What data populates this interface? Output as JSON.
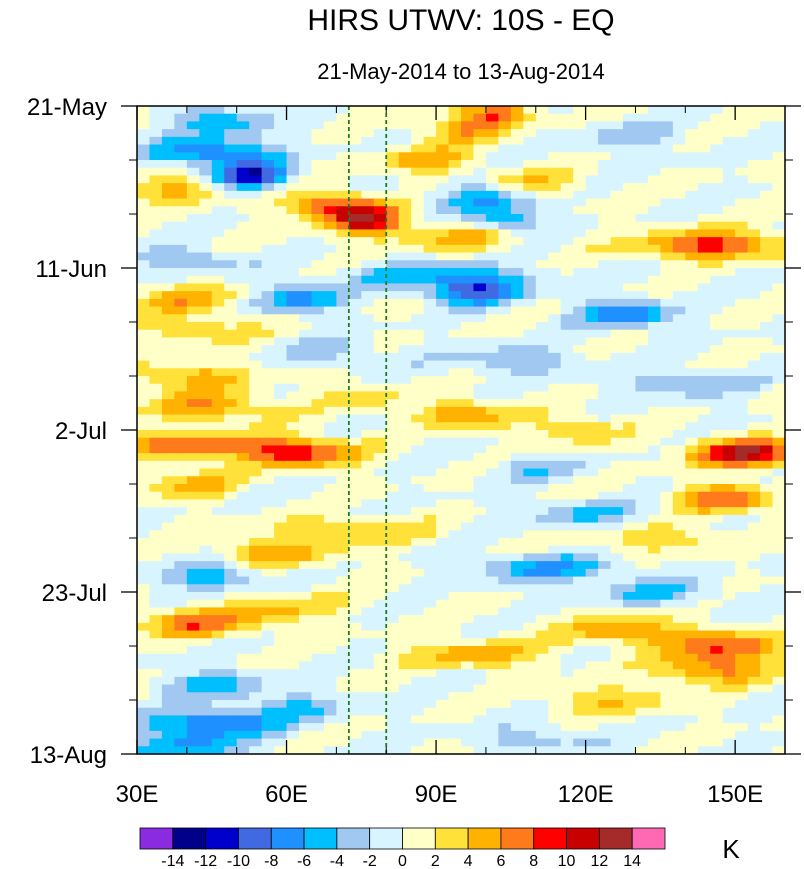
{
  "chart_data": {
    "type": "heatmap",
    "title": "HIRS UTWV: 10S - EQ",
    "subtitle": "21-May-2014 to 13-Aug-2014",
    "xlabel": "",
    "ylabel": "",
    "x_range": [
      30,
      160
    ],
    "x_ticks": [
      {
        "value": 30,
        "label": "30E"
      },
      {
        "value": 60,
        "label": "60E"
      },
      {
        "value": 90,
        "label": "90E"
      },
      {
        "value": 120,
        "label": "120E"
      },
      {
        "value": 150,
        "label": "150E"
      }
    ],
    "y_range_days": [
      0,
      84
    ],
    "y_ticks": [
      {
        "day": 0,
        "label": "21-May"
      },
      {
        "day": 21,
        "label": "11-Jun"
      },
      {
        "day": 42,
        "label": "2-Jul"
      },
      {
        "day": 63,
        "label": "23-Jul"
      },
      {
        "day": 84,
        "label": "13-Aug"
      }
    ],
    "reference_lines_lon": [
      72.5,
      80
    ],
    "colorbar": {
      "unit": "K",
      "levels": [
        -14,
        -12,
        -10,
        -8,
        -6,
        -4,
        -2,
        0,
        2,
        4,
        6,
        8,
        10,
        12,
        14
      ],
      "colors": [
        "#8a2be2",
        "#00008b",
        "#0000cd",
        "#4169e1",
        "#1e90ff",
        "#00bfff",
        "#a0c8f0",
        "#d8f4ff",
        "#ffffc8",
        "#ffe13a",
        "#ffb300",
        "#ff7a1a",
        "#ff0000",
        "#c80000",
        "#a52a2a",
        "#ff69b4"
      ]
    },
    "anomaly_bands": [
      {
        "day": 1,
        "lon": 102,
        "width": 8,
        "value": 7
      },
      {
        "day": 2,
        "lon": 47,
        "width": 10,
        "value": -6
      },
      {
        "day": 3,
        "lon": 95,
        "width": 10,
        "value": 5
      },
      {
        "day": 4,
        "lon": 130,
        "width": 12,
        "value": -3
      },
      {
        "day": 6,
        "lon": 45,
        "width": 14,
        "value": -8
      },
      {
        "day": 7,
        "lon": 88,
        "width": 10,
        "value": 5
      },
      {
        "day": 9,
        "lon": 53,
        "width": 8,
        "value": -11
      },
      {
        "day": 10,
        "lon": 110,
        "width": 10,
        "value": 4
      },
      {
        "day": 11,
        "lon": 38,
        "width": 10,
        "value": 5
      },
      {
        "day": 12,
        "lon": 100,
        "width": 10,
        "value": -6
      },
      {
        "day": 13,
        "lon": 70,
        "width": 10,
        "value": 9
      },
      {
        "day": 15,
        "lon": 76,
        "width": 8,
        "value": 10
      },
      {
        "day": 15,
        "lon": 104,
        "width": 8,
        "value": -6
      },
      {
        "day": 17,
        "lon": 95,
        "width": 14,
        "value": 5
      },
      {
        "day": 18,
        "lon": 145,
        "width": 16,
        "value": 9
      },
      {
        "day": 20,
        "lon": 40,
        "width": 12,
        "value": -4
      },
      {
        "day": 22,
        "lon": 90,
        "width": 20,
        "value": -5
      },
      {
        "day": 24,
        "lon": 98,
        "width": 10,
        "value": -9
      },
      {
        "day": 25,
        "lon": 40,
        "width": 14,
        "value": 5
      },
      {
        "day": 25,
        "lon": 62,
        "width": 10,
        "value": -7
      },
      {
        "day": 27,
        "lon": 128,
        "width": 10,
        "value": -8
      },
      {
        "day": 29,
        "lon": 42,
        "width": 12,
        "value": 4
      },
      {
        "day": 32,
        "lon": 70,
        "width": 10,
        "value": -3
      },
      {
        "day": 33,
        "lon": 105,
        "width": 14,
        "value": -4
      },
      {
        "day": 35,
        "lon": 40,
        "width": 14,
        "value": 5
      },
      {
        "day": 36,
        "lon": 140,
        "width": 14,
        "value": -4
      },
      {
        "day": 38,
        "lon": 75,
        "width": 8,
        "value": 4
      },
      {
        "day": 39,
        "lon": 45,
        "width": 14,
        "value": 6
      },
      {
        "day": 40,
        "lon": 96,
        "width": 10,
        "value": 6
      },
      {
        "day": 42,
        "lon": 118,
        "width": 10,
        "value": 4
      },
      {
        "day": 44,
        "lon": 42,
        "width": 18,
        "value": 7
      },
      {
        "day": 45,
        "lon": 63,
        "width": 12,
        "value": 9
      },
      {
        "day": 45,
        "lon": 152,
        "width": 12,
        "value": 12
      },
      {
        "day": 47,
        "lon": 110,
        "width": 12,
        "value": -3
      },
      {
        "day": 49,
        "lon": 40,
        "width": 10,
        "value": 5
      },
      {
        "day": 51,
        "lon": 148,
        "width": 10,
        "value": 8
      },
      {
        "day": 53,
        "lon": 120,
        "width": 14,
        "value": -4
      },
      {
        "day": 55,
        "lon": 72,
        "width": 18,
        "value": 4
      },
      {
        "day": 56,
        "lon": 135,
        "width": 14,
        "value": 4
      },
      {
        "day": 58,
        "lon": 58,
        "width": 14,
        "value": 5
      },
      {
        "day": 60,
        "lon": 112,
        "width": 16,
        "value": -6
      },
      {
        "day": 61,
        "lon": 45,
        "width": 10,
        "value": -6
      },
      {
        "day": 63,
        "lon": 135,
        "width": 14,
        "value": -4
      },
      {
        "day": 65,
        "lon": 60,
        "width": 12,
        "value": 4
      },
      {
        "day": 67,
        "lon": 42,
        "width": 14,
        "value": 7
      },
      {
        "day": 68,
        "lon": 128,
        "width": 14,
        "value": 6
      },
      {
        "day": 70,
        "lon": 148,
        "width": 12,
        "value": 8
      },
      {
        "day": 71,
        "lon": 98,
        "width": 16,
        "value": 5
      },
      {
        "day": 73,
        "lon": 145,
        "width": 12,
        "value": 7
      },
      {
        "day": 75,
        "lon": 45,
        "width": 12,
        "value": -5
      },
      {
        "day": 77,
        "lon": 125,
        "width": 14,
        "value": 4
      },
      {
        "day": 78,
        "lon": 62,
        "width": 12,
        "value": -4
      },
      {
        "day": 80,
        "lon": 45,
        "width": 14,
        "value": -8
      },
      {
        "day": 82,
        "lon": 110,
        "width": 14,
        "value": -3
      },
      {
        "day": 83,
        "lon": 40,
        "width": 12,
        "value": -6
      }
    ]
  }
}
